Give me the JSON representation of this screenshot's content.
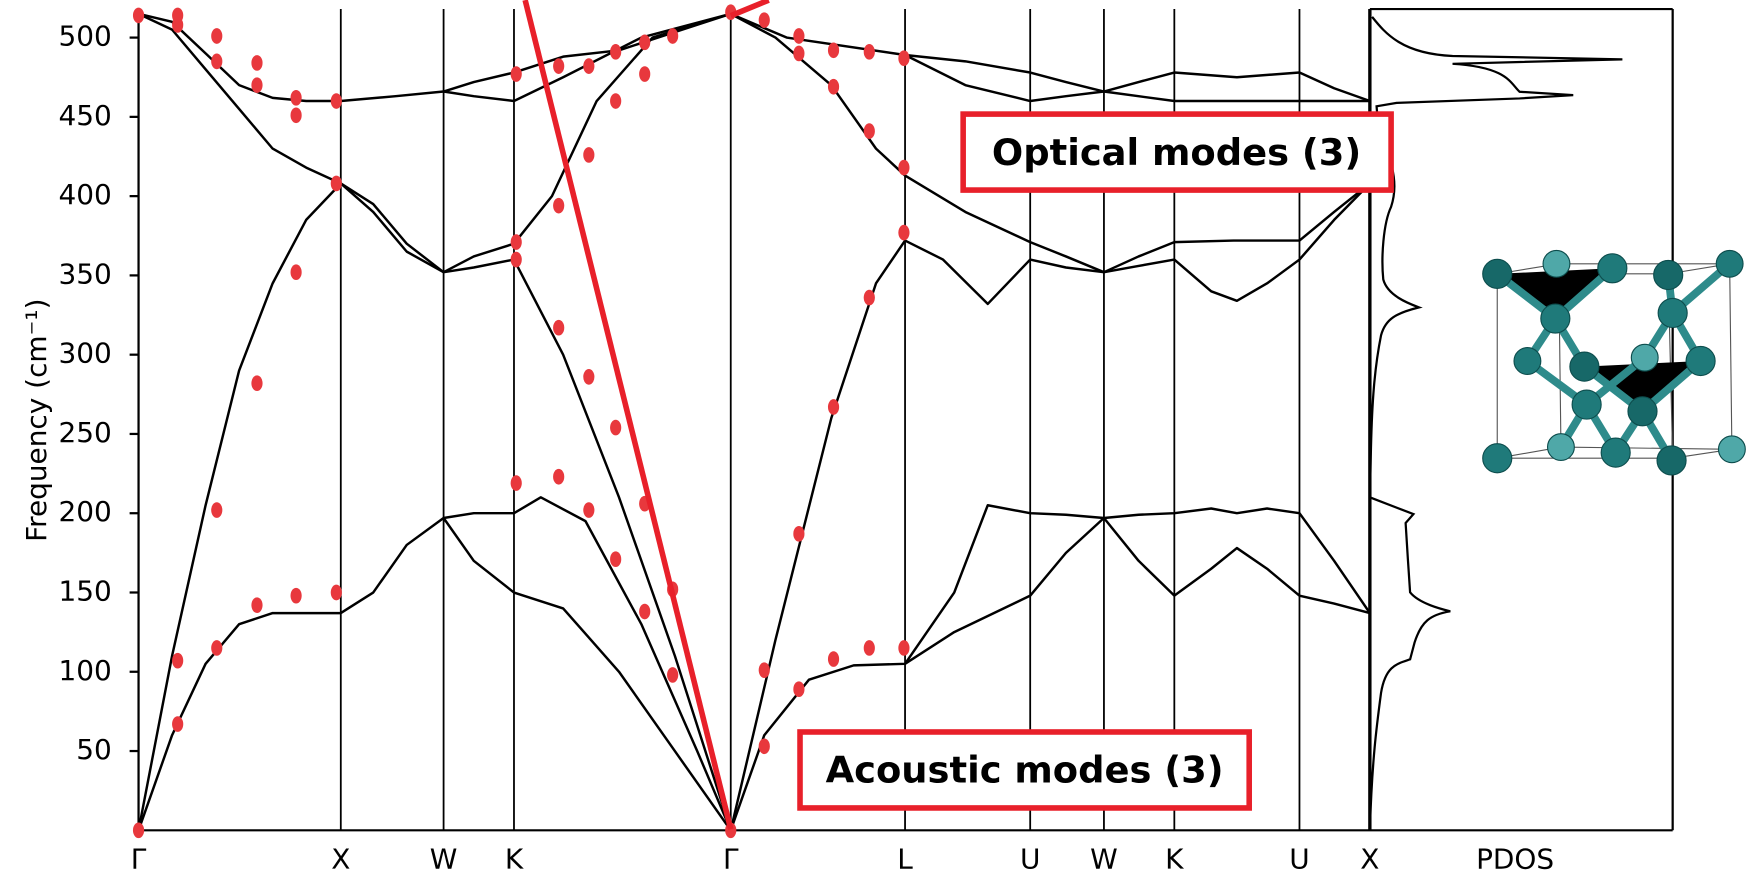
{
  "chart_data": [
    {
      "type": "line",
      "y_label": "Frequency (cm⁻¹)",
      "panel_label": "PDOS",
      "annotations": [
        "Optical modes (3)",
        "Acoustic modes (3)"
      ],
      "xlim": [
        0,
        11.02
      ],
      "ylim": [
        0,
        518
      ],
      "yticks": [
        50,
        100,
        150,
        200,
        250,
        300,
        350,
        400,
        450,
        500
      ],
      "xticks": [
        {
          "value": 0,
          "label": "Γ"
        },
        {
          "value": 1.81,
          "label": "X"
        },
        {
          "value": 2.73,
          "label": "W"
        },
        {
          "value": 3.36,
          "label": "K"
        },
        {
          "value": 5.3,
          "label": "Γ"
        },
        {
          "value": 6.86,
          "label": "L"
        },
        {
          "value": 7.98,
          "label": "U"
        },
        {
          "value": 8.64,
          "label": "W"
        },
        {
          "value": 9.27,
          "label": "K"
        },
        {
          "value": 10.39,
          "label": "U"
        },
        {
          "value": 11.02,
          "label": "X"
        }
      ],
      "series": [
        {
          "color": "#000000",
          "x": [
            0,
            0.3,
            0.6,
            0.9,
            1.2,
            1.5,
            1.81,
            2.1,
            2.4,
            2.73,
            3.0,
            3.36,
            3.8,
            4.3,
            4.8,
            5.3,
            5.6,
            6.0,
            6.4,
            6.86,
            7.3,
            7.98,
            8.3,
            8.64,
            8.95,
            9.27,
            9.6,
            9.83,
            10.1,
            10.39,
            10.7,
            11.02
          ],
          "values": [
            0,
            60,
            105,
            130,
            137,
            137,
            137,
            150,
            180,
            197,
            170,
            150,
            140,
            100,
            50,
            0,
            60,
            95,
            104,
            105,
            125,
            148,
            175,
            197,
            170,
            148,
            165,
            178,
            165,
            148,
            143,
            137
          ]
        },
        {
          "color": "#000000",
          "x": [
            2.73,
            3.0,
            3.36,
            3.6,
            4.0,
            4.5,
            5.0,
            5.3
          ],
          "values": [
            197,
            200,
            200,
            210,
            195,
            130,
            50,
            0
          ]
        },
        {
          "color": "#000000",
          "x": [
            6.86,
            7.3,
            7.6,
            7.98,
            8.3,
            8.64,
            8.95,
            9.27,
            9.6,
            9.83,
            10.1,
            10.39,
            10.7,
            11.02
          ],
          "values": [
            105,
            150,
            205,
            200,
            199,
            197,
            199,
            200,
            203,
            200,
            203,
            200,
            170,
            137
          ]
        },
        {
          "color": "#000000",
          "x": [
            0,
            0.3,
            0.6,
            0.9,
            1.2,
            1.5,
            1.81,
            2.1,
            2.4,
            2.73,
            3.0,
            3.36,
            3.8,
            4.3,
            4.8,
            5.3,
            5.7,
            6.2,
            6.6,
            6.86,
            7.2,
            7.6,
            7.98,
            8.3,
            8.64,
            8.95,
            9.27,
            9.6,
            9.83,
            10.1,
            10.39,
            10.7,
            11.02
          ],
          "values": [
            0,
            110,
            205,
            290,
            345,
            385,
            408,
            395,
            370,
            352,
            355,
            360,
            300,
            210,
            110,
            0,
            120,
            260,
            345,
            372,
            360,
            332,
            360,
            355,
            352,
            356,
            360,
            340,
            334,
            345,
            360,
            385,
            408
          ]
        },
        {
          "color": "#000000",
          "x": [
            0,
            0.3,
            0.6,
            0.9,
            1.2,
            1.5,
            1.81,
            2.1,
            2.4,
            2.73,
            3.0,
            3.36,
            3.7,
            4.1,
            4.6,
            5.3,
            5.7,
            6.2,
            6.6,
            6.86,
            7.4,
            7.98,
            8.3,
            8.64,
            8.95,
            9.27,
            9.8,
            10.39,
            10.7,
            11.02
          ],
          "values": [
            515,
            505,
            480,
            455,
            430,
            418,
            408,
            390,
            365,
            352,
            362,
            370,
            400,
            460,
            500,
            515,
            500,
            470,
            430,
            413,
            390,
            371,
            362,
            352,
            362,
            371,
            372,
            372,
            390,
            408
          ]
        },
        {
          "color": "#000000",
          "x": [
            0,
            0.3,
            0.6,
            0.9,
            1.2,
            1.5,
            1.81,
            2.3,
            2.73,
            3.0,
            3.36,
            3.8,
            4.5,
            5.3,
            5.8,
            6.86,
            7.4,
            7.98,
            8.3,
            8.64,
            8.95,
            9.27,
            9.83,
            10.39,
            10.7,
            11.02
          ],
          "values": [
            515,
            510,
            490,
            470,
            462,
            460,
            460,
            463,
            466,
            463,
            460,
            475,
            500,
            515,
            500,
            489,
            470,
            460,
            463,
            466,
            463,
            460,
            460,
            460,
            460,
            460
          ]
        },
        {
          "color": "#000000",
          "x": [
            2.73,
            3.0,
            3.36,
            3.8,
            4.3,
            5.3
          ],
          "values": [
            466,
            472,
            478,
            488,
            492,
            515
          ]
        },
        {
          "color": "#000000",
          "x": [
            6.86,
            7.4,
            7.98,
            8.3,
            8.64,
            8.95,
            9.27,
            9.83,
            10.39,
            10.7,
            11.02
          ],
          "values": [
            489,
            485,
            478,
            472,
            466,
            472,
            478,
            475,
            478,
            468,
            460
          ]
        }
      ]
    },
    {
      "type": "scatter",
      "color": "#e8383d",
      "xlim": [
        0,
        11.02
      ],
      "ylim": [
        0,
        518
      ],
      "x": [
        0,
        0,
        0.35,
        0.35,
        0.7,
        0.7,
        1.06,
        1.06,
        1.41,
        1.41,
        1.77,
        1.77,
        1.41,
        1.06,
        0.7,
        0.35,
        0.35,
        0.7,
        1.06,
        1.41,
        1.77,
        3.38,
        3.38,
        3.38,
        3.38,
        3.76,
        3.76,
        3.76,
        3.76,
        4.03,
        4.03,
        4.03,
        4.03,
        4.27,
        4.27,
        4.27,
        4.27,
        4.53,
        4.53,
        4.53,
        4.53,
        4.78,
        4.78,
        4.78,
        5.3,
        5.3,
        5.6,
        5.6,
        5.6,
        5.91,
        5.91,
        5.91,
        5.91,
        6.22,
        6.22,
        6.22,
        6.22,
        6.54,
        6.54,
        6.54,
        6.54,
        6.85,
        6.85,
        6.85,
        6.85
      ],
      "values": [
        514,
        0,
        514,
        508,
        501,
        485,
        484,
        470,
        462,
        451,
        460,
        408,
        352,
        282,
        202,
        107,
        67,
        115,
        142,
        148,
        150,
        477,
        371,
        360,
        219,
        482,
        394,
        317,
        223,
        482,
        426,
        286,
        202,
        491,
        460,
        254,
        171,
        497,
        477,
        206,
        138,
        501,
        152,
        98,
        516,
        0,
        511,
        101,
        53,
        501,
        490,
        187,
        89,
        492,
        469,
        267,
        108,
        491,
        441,
        336,
        115,
        487,
        418,
        377,
        115
      ]
    }
  ]
}
